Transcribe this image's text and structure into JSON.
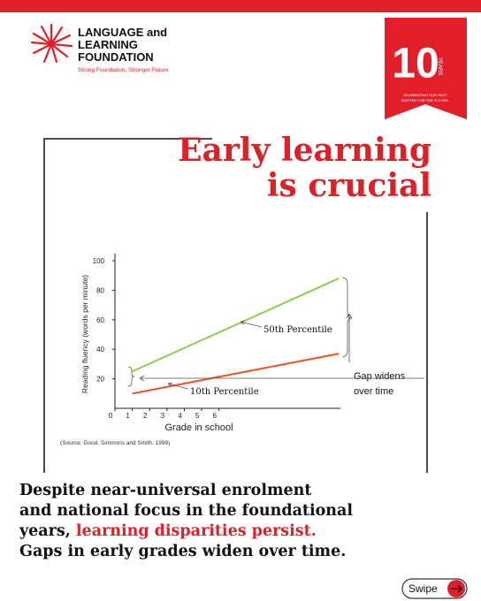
{
  "header": {
    "org_line1": "LANGUAGE and",
    "org_line2": "LEARNING",
    "org_line3": "FOUNDATION",
    "tagline": "Strong Foundation, Stronger Future",
    "badge_number": "10",
    "badge_word": "YEARS",
    "badge_caption_1": "CELEBRATING OUR PAST,",
    "badge_caption_2": "EXCITED FOR THE FUTURE."
  },
  "headline": {
    "line1": "Early learning",
    "line2": "is crucial"
  },
  "chart_data": {
    "type": "line",
    "x_label": "Grade in school",
    "y_label": "Reading fluency (words per minute)",
    "series": [
      {
        "name": "50th Percentile",
        "color": "#8ccf4d",
        "x": [
          1,
          12.9
        ],
        "values": [
          25,
          88
        ]
      },
      {
        "name": "10th Percentile",
        "color": "#f0501e",
        "x": [
          1,
          12.9
        ],
        "values": [
          10,
          37
        ]
      }
    ],
    "annotation_1": "Gap widens",
    "annotation_2": "over time",
    "source": "(Source: Good, Simmons and Smith, 1998)",
    "xlim": [
      0,
      13
    ],
    "xticks": [
      0,
      1,
      2,
      3,
      4,
      5,
      6
    ],
    "ylim": [
      0,
      100
    ],
    "yticks": [
      20,
      40,
      60,
      80,
      100
    ]
  },
  "body": {
    "line1": "Despite near-universal enrolment",
    "line2": "and national focus in the foundational",
    "line3_start": "years, ",
    "line3_highlight": "learning disparities persist.",
    "line4": "Gaps in early grades widen over time."
  },
  "button": {
    "label": "Swipe"
  }
}
